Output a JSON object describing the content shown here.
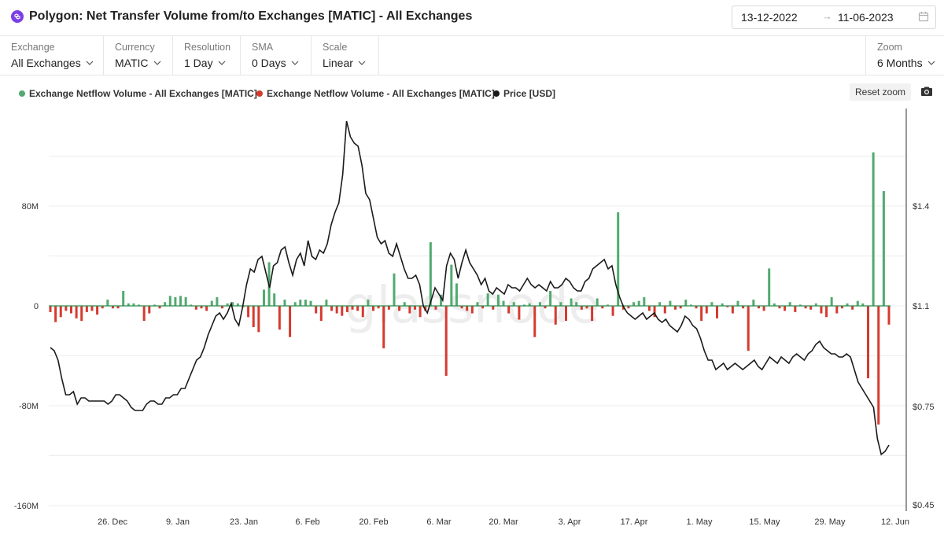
{
  "header": {
    "title": "Polygon: Net Transfer Volume from/to Exchanges [MATIC] - All Exchanges",
    "logo_icon": "polygon-logo-icon",
    "date_from": "13-12-2022",
    "date_arrow": "→",
    "date_to": "11-06-2023",
    "calendar_icon": "calendar-icon"
  },
  "controls": [
    {
      "label": "Exchange",
      "value": "All Exchanges"
    },
    {
      "label": "Currency",
      "value": "MATIC"
    },
    {
      "label": "Resolution",
      "value": "1 Day"
    },
    {
      "label": "SMA",
      "value": "0 Days"
    },
    {
      "label": "Scale",
      "value": "Linear"
    }
  ],
  "zoom": {
    "label": "Zoom",
    "value": "6 Months"
  },
  "toolbar": {
    "reset_zoom": "Reset zoom",
    "camera_icon": "camera-icon"
  },
  "watermark": "glassnode",
  "colors": {
    "inflow": "#52aa6f",
    "outflow": "#d63a2f",
    "price": "#1a1a1a"
  },
  "chart_data": {
    "type": "bar",
    "legend": [
      {
        "name": "Exchange Netflow Volume - All Exchanges [MATIC]",
        "color": "#52aa6f"
      },
      {
        "name": "Exchange Netflow Volume - All Exchanges [MATIC]",
        "color": "#d63a2f"
      },
      {
        "name": "Price [USD]",
        "color": "#1a1a1a"
      }
    ],
    "x_start": "2022-12-13",
    "x_end": "2023-06-11",
    "x_ticks": [
      "26. Dec",
      "9. Jan",
      "23. Jan",
      "6. Feb",
      "20. Feb",
      "6. Mar",
      "20. Mar",
      "3. Apr",
      "17. Apr",
      "1. May",
      "15. May",
      "29. May",
      "12. Jun"
    ],
    "y_left": {
      "ticks": [
        "80M",
        "0",
        "-80M",
        "-160M"
      ],
      "values": [
        80,
        0,
        -80,
        -160
      ],
      "range": [
        -160,
        125
      ],
      "unit": "M MATIC"
    },
    "y_right": {
      "ticks": [
        "$1.4",
        "$1.1",
        "$0.75",
        "$0.45"
      ],
      "values": [
        1.4,
        1.1,
        0.75,
        0.45
      ],
      "range": [
        0.45,
        1.7
      ],
      "unit": "USD"
    },
    "series": [
      {
        "name": "Exchange Netflow Volume - All Exchanges [MATIC]",
        "axis": "left",
        "values": [
          -5,
          -13,
          -9,
          -4,
          -6,
          -10,
          -12,
          -5,
          -4,
          -7,
          -2,
          5,
          -2,
          -2,
          12,
          2,
          2,
          1,
          -12,
          -6,
          1,
          -2,
          3,
          8,
          7,
          8,
          7,
          1,
          -3,
          -2,
          -4,
          4,
          7,
          -2,
          2,
          3,
          2,
          -1,
          -9,
          -17,
          -21,
          13,
          35,
          10,
          -19,
          5,
          -25,
          3,
          5,
          5,
          4,
          -6,
          -12,
          5,
          -4,
          -6,
          -8,
          -5,
          -3,
          -4,
          -9,
          5,
          -4,
          -2,
          -34,
          -3,
          26,
          -4,
          3,
          -6,
          -3,
          -9,
          -4,
          51,
          -3,
          9,
          -56,
          33,
          18,
          -2,
          -4,
          -6,
          3,
          -2,
          10,
          -3,
          9,
          4,
          -6,
          3,
          -11,
          1,
          2,
          -25,
          3,
          -2,
          12,
          -15,
          3,
          -12,
          6,
          3,
          -3,
          -2,
          -12,
          6,
          -2,
          1,
          -8,
          75,
          -3,
          -2,
          3,
          4,
          7,
          -4,
          -9,
          3,
          -6,
          4,
          -3,
          -2,
          5,
          1,
          -2,
          -12,
          -6,
          3,
          -10,
          2,
          -1,
          -6,
          4,
          -2,
          -36,
          5,
          -2,
          -4,
          30,
          2,
          -2,
          -4,
          3,
          -5,
          1,
          -2,
          -3,
          2,
          -6,
          -9,
          7,
          -6,
          -2,
          2,
          -3,
          4,
          2,
          -58,
          123,
          -95,
          92,
          -15
        ]
      },
      {
        "name": "Price [USD]",
        "axis": "right",
        "values": [
          0.95,
          0.94,
          0.91,
          0.85,
          0.8,
          0.8,
          0.81,
          0.77,
          0.79,
          0.79,
          0.78,
          0.78,
          0.78,
          0.78,
          0.78,
          0.77,
          0.78,
          0.8,
          0.8,
          0.79,
          0.78,
          0.76,
          0.75,
          0.75,
          0.75,
          0.77,
          0.78,
          0.78,
          0.77,
          0.77,
          0.79,
          0.79,
          0.8,
          0.8,
          0.82,
          0.82,
          0.85,
          0.88,
          0.91,
          0.92,
          0.95,
          0.99,
          1.02,
          1.05,
          1.06,
          1.04,
          1.06,
          1.09,
          1.04,
          1.02,
          1.08,
          1.15,
          1.2,
          1.19,
          1.23,
          1.24,
          1.19,
          1.14,
          1.21,
          1.22,
          1.26,
          1.27,
          1.22,
          1.18,
          1.23,
          1.25,
          1.21,
          1.29,
          1.24,
          1.23,
          1.26,
          1.25,
          1.28,
          1.34,
          1.38,
          1.41,
          1.5,
          1.67,
          1.62,
          1.6,
          1.59,
          1.53,
          1.44,
          1.42,
          1.36,
          1.3,
          1.28,
          1.29,
          1.25,
          1.24,
          1.28,
          1.24,
          1.2,
          1.17,
          1.17,
          1.18,
          1.15,
          1.08,
          1.06,
          1.1,
          1.14,
          1.12,
          1.1,
          1.21,
          1.25,
          1.23,
          1.17,
          1.22,
          1.26,
          1.22,
          1.2,
          1.18,
          1.15,
          1.17,
          1.13,
          1.12,
          1.14,
          1.13,
          1.12,
          1.15,
          1.14,
          1.14,
          1.13,
          1.15,
          1.17,
          1.15,
          1.14,
          1.15,
          1.14,
          1.13,
          1.16,
          1.14,
          1.14,
          1.15,
          1.17,
          1.16,
          1.14,
          1.13,
          1.13,
          1.16,
          1.17,
          1.2,
          1.21,
          1.22,
          1.23,
          1.2,
          1.21,
          1.15,
          1.11,
          1.08,
          1.06,
          1.05,
          1.04,
          1.05,
          1.06,
          1.04,
          1.05,
          1.06,
          1.04,
          1.03,
          1.04,
          1.02,
          1.01,
          1.0,
          1.02,
          1.05,
          1.04,
          1.02,
          1.01,
          0.98,
          0.94,
          0.91,
          0.91,
          0.88,
          0.89,
          0.9,
          0.88,
          0.89,
          0.9,
          0.89,
          0.88,
          0.89,
          0.9,
          0.91,
          0.89,
          0.88,
          0.9,
          0.92,
          0.91,
          0.9,
          0.92,
          0.91,
          0.9,
          0.92,
          0.93,
          0.92,
          0.91,
          0.93,
          0.94,
          0.96,
          0.97,
          0.95,
          0.94,
          0.93,
          0.93,
          0.92,
          0.92,
          0.93,
          0.92,
          0.88,
          0.84,
          0.82,
          0.8,
          0.78,
          0.76,
          0.66,
          0.61,
          0.62,
          0.64
        ]
      }
    ],
    "grid": "horizontal",
    "legend_position": "top-left"
  }
}
